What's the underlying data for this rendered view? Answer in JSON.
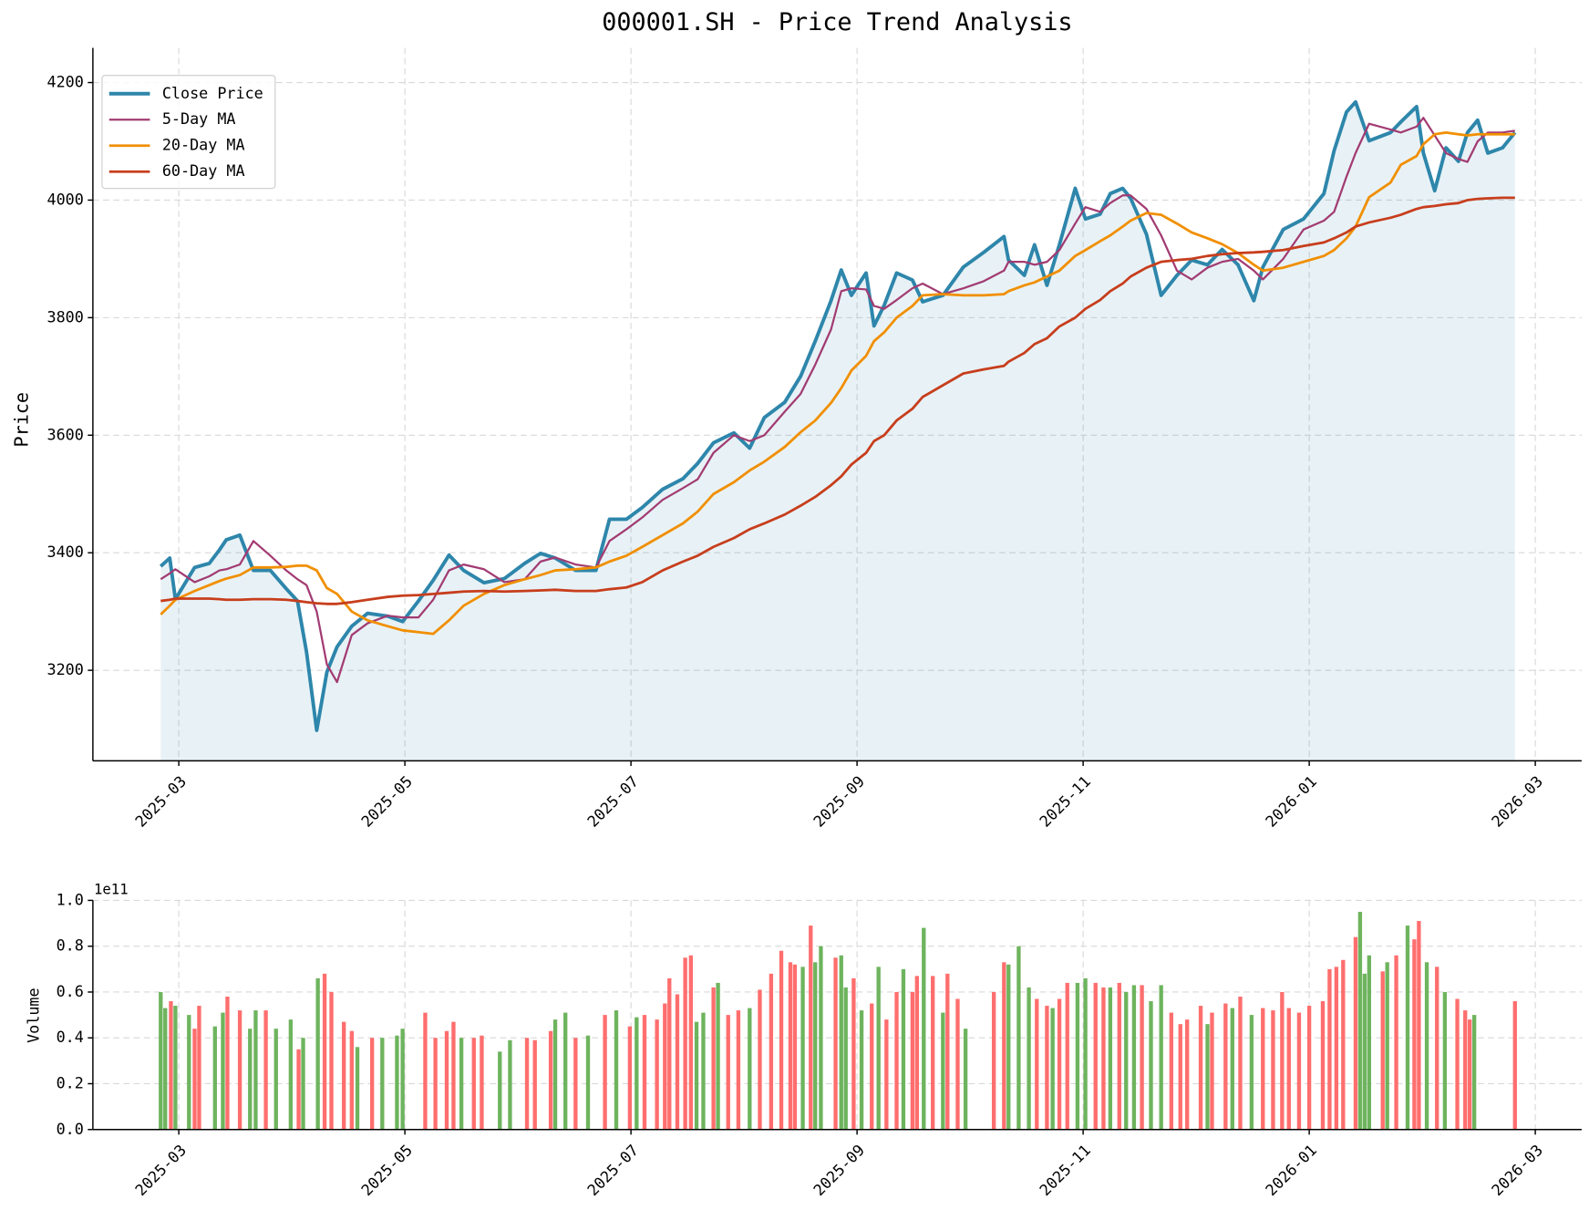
{
  "chart_data": [
    {
      "type": "line",
      "title": "000001.SH - Price Trend Analysis",
      "ylabel": "Price",
      "xlim": [
        2.24,
        15.41
      ],
      "ylim": [
        3046,
        4259
      ],
      "xticks": [
        {
          "value": 3,
          "label": "2025-03"
        },
        {
          "value": 5,
          "label": "2025-05"
        },
        {
          "value": 7,
          "label": "2025-07"
        },
        {
          "value": 9,
          "label": "2025-09"
        },
        {
          "value": 11,
          "label": "2025-11"
        },
        {
          "value": 13,
          "label": "2026-01"
        },
        {
          "value": 15,
          "label": "2026-03"
        }
      ],
      "yticks": [
        3200,
        3400,
        3600,
        3800,
        4000,
        4200
      ],
      "grid": true,
      "legend": "upper left",
      "x": [
        2.84,
        2.92,
        2.97,
        3.14,
        3.27,
        3.36,
        3.42,
        3.54,
        3.66,
        3.81,
        3.95,
        4.05,
        4.13,
        4.22,
        4.31,
        4.4,
        4.53,
        4.67,
        4.85,
        4.98,
        5.12,
        5.25,
        5.39,
        5.52,
        5.7,
        5.88,
        6.06,
        6.2,
        6.33,
        6.51,
        6.69,
        6.81,
        6.96,
        7.1,
        7.28,
        7.46,
        7.59,
        7.73,
        7.91,
        8.05,
        8.18,
        8.36,
        8.5,
        8.63,
        8.77,
        8.86,
        8.95,
        9.08,
        9.15,
        9.24,
        9.35,
        9.49,
        9.58,
        9.76,
        9.94,
        10.12,
        10.3,
        10.34,
        10.48,
        10.57,
        10.68,
        10.79,
        10.93,
        11.02,
        11.15,
        11.24,
        11.35,
        11.42,
        11.56,
        11.69,
        11.83,
        11.96,
        12.1,
        12.23,
        12.37,
        12.51,
        12.59,
        12.77,
        12.95,
        13.13,
        13.22,
        13.33,
        13.41,
        13.53,
        13.72,
        13.81,
        13.95,
        14.01,
        14.11,
        14.21,
        14.32,
        14.4,
        14.49,
        14.58,
        14.71,
        14.82
      ],
      "series": [
        {
          "name": "Close Price",
          "color": "#2e86ab",
          "width": 3.5,
          "fill": true,
          "values": [
            3377,
            3391,
            3321,
            3375,
            3382,
            3405,
            3422,
            3430,
            3370,
            3370,
            3339,
            3318,
            3231,
            3098,
            3197,
            3240,
            3275,
            3297,
            3292,
            3283,
            3318,
            3353,
            3396,
            3370,
            3349,
            3356,
            3382,
            3399,
            3391,
            3370,
            3370,
            3457,
            3457,
            3477,
            3508,
            3526,
            3552,
            3587,
            3604,
            3578,
            3630,
            3656,
            3700,
            3760,
            3829,
            3881,
            3838,
            3876,
            3786,
            3821,
            3876,
            3864,
            3827,
            3838,
            3886,
            3911,
            3938,
            3898,
            3872,
            3924,
            3855,
            3924,
            4020,
            3968,
            3976,
            4011,
            4020,
            4003,
            3942,
            3838,
            3872,
            3898,
            3890,
            3916,
            3890,
            3829,
            3886,
            3950,
            3968,
            4011,
            4084,
            4150,
            4167,
            4101,
            4115,
            4133,
            4159,
            4080,
            4016,
            4089,
            4066,
            4115,
            4136,
            4080,
            4089,
            4115
          ]
        },
        {
          "name": "5-Day MA",
          "color": "#a23b72",
          "width": 2,
          "values": [
            3355,
            3365,
            3372,
            3350,
            3360,
            3370,
            3372,
            3380,
            3420,
            3395,
            3370,
            3355,
            3345,
            3300,
            3210,
            3180,
            3260,
            3280,
            3293,
            3290,
            3290,
            3320,
            3370,
            3380,
            3372,
            3350,
            3355,
            3385,
            3392,
            3380,
            3375,
            3420,
            3440,
            3460,
            3490,
            3510,
            3525,
            3570,
            3600,
            3590,
            3600,
            3640,
            3670,
            3720,
            3780,
            3845,
            3850,
            3848,
            3820,
            3815,
            3830,
            3850,
            3858,
            3840,
            3850,
            3862,
            3880,
            3895,
            3895,
            3890,
            3895,
            3915,
            3960,
            3988,
            3980,
            3995,
            4008,
            4008,
            3985,
            3940,
            3880,
            3865,
            3885,
            3895,
            3900,
            3880,
            3865,
            3900,
            3950,
            3965,
            3980,
            4040,
            4080,
            4130,
            4120,
            4115,
            4125,
            4140,
            4110,
            4080,
            4070,
            4065,
            4100,
            4115,
            4115,
            4118
          ]
        },
        {
          "name": "20-Day MA",
          "color": "#f18f01",
          "width": 2.5,
          "values": [
            3295,
            3310,
            3320,
            3335,
            3345,
            3352,
            3356,
            3362,
            3375,
            3375,
            3376,
            3378,
            3378,
            3370,
            3340,
            3330,
            3300,
            3285,
            3275,
            3268,
            3265,
            3262,
            3285,
            3310,
            3330,
            3345,
            3355,
            3362,
            3370,
            3372,
            3375,
            3385,
            3395,
            3410,
            3430,
            3450,
            3470,
            3500,
            3520,
            3540,
            3555,
            3580,
            3605,
            3625,
            3655,
            3680,
            3710,
            3735,
            3760,
            3775,
            3800,
            3820,
            3838,
            3840,
            3838,
            3838,
            3840,
            3845,
            3855,
            3860,
            3870,
            3880,
            3905,
            3915,
            3930,
            3940,
            3955,
            3965,
            3978,
            3975,
            3960,
            3945,
            3935,
            3925,
            3910,
            3890,
            3880,
            3885,
            3895,
            3905,
            3915,
            3935,
            3955,
            4005,
            4030,
            4060,
            4075,
            4095,
            4112,
            4115,
            4112,
            4110,
            4112,
            4112,
            4112,
            4112
          ]
        },
        {
          "name": "60-Day MA",
          "color": "#c73e1d",
          "width": 2.5,
          "values": [
            3318,
            3320,
            3322,
            3322,
            3322,
            3321,
            3320,
            3320,
            3321,
            3321,
            3320,
            3318,
            3316,
            3314,
            3313,
            3313,
            3316,
            3320,
            3325,
            3327,
            3328,
            3330,
            3332,
            3334,
            3335,
            3334,
            3335,
            3336,
            3337,
            3335,
            3335,
            3338,
            3341,
            3350,
            3370,
            3385,
            3395,
            3410,
            3425,
            3440,
            3450,
            3465,
            3480,
            3495,
            3515,
            3530,
            3550,
            3570,
            3590,
            3600,
            3625,
            3645,
            3665,
            3685,
            3705,
            3712,
            3718,
            3725,
            3740,
            3755,
            3765,
            3785,
            3800,
            3815,
            3830,
            3845,
            3858,
            3870,
            3885,
            3895,
            3898,
            3900,
            3905,
            3908,
            3910,
            3911,
            3912,
            3915,
            3922,
            3928,
            3935,
            3945,
            3955,
            3962,
            3970,
            3975,
            3985,
            3988,
            3990,
            3993,
            3995,
            4000,
            4002,
            4003,
            4004,
            4004
          ]
        }
      ]
    },
    {
      "type": "bar",
      "ylabel": "Volume",
      "offset_label": "1e11",
      "xlim": [
        2.24,
        15.41
      ],
      "ylim": [
        0,
        1.0
      ],
      "xticks": [
        {
          "value": 3,
          "label": "2025-03"
        },
        {
          "value": 5,
          "label": "2025-05"
        },
        {
          "value": 7,
          "label": "2025-07"
        },
        {
          "value": 9,
          "label": "2025-09"
        },
        {
          "value": 11,
          "label": "2025-11"
        },
        {
          "value": 13,
          "label": "2026-01"
        },
        {
          "value": 15,
          "label": "2026-03"
        }
      ],
      "yticks": [
        {
          "value": 0,
          "label": "0.0"
        },
        0.2,
        0.4,
        0.6,
        0.8,
        {
          "value": 1,
          "label": "1.0"
        }
      ],
      "grid": true,
      "x": [
        2.84,
        2.88,
        2.93,
        2.97,
        3.09,
        3.14,
        3.18,
        3.32,
        3.39,
        3.43,
        3.54,
        3.63,
        3.68,
        3.77,
        3.86,
        3.99,
        4.06,
        4.1,
        4.23,
        4.29,
        4.35,
        4.46,
        4.53,
        4.58,
        4.71,
        4.8,
        4.93,
        4.98,
        5.18,
        5.27,
        5.37,
        5.43,
        5.5,
        5.61,
        5.68,
        5.84,
        5.93,
        6.08,
        6.15,
        6.29,
        6.33,
        6.42,
        6.51,
        6.62,
        6.77,
        6.87,
        6.99,
        7.05,
        7.12,
        7.23,
        7.3,
        7.34,
        7.41,
        7.48,
        7.53,
        7.58,
        7.64,
        7.73,
        7.77,
        7.86,
        7.95,
        8.05,
        8.14,
        8.24,
        8.33,
        8.41,
        8.45,
        8.52,
        8.59,
        8.63,
        8.68,
        8.81,
        8.86,
        8.9,
        8.97,
        9.04,
        9.13,
        9.19,
        9.26,
        9.35,
        9.41,
        9.49,
        9.53,
        9.59,
        9.67,
        9.76,
        9.8,
        9.89,
        9.96,
        10.21,
        10.3,
        10.34,
        10.43,
        10.52,
        10.59,
        10.68,
        10.73,
        10.79,
        10.86,
        10.95,
        11.02,
        11.11,
        11.18,
        11.24,
        11.32,
        11.38,
        11.45,
        11.52,
        11.6,
        11.69,
        11.78,
        11.86,
        11.92,
        12.04,
        12.1,
        12.14,
        12.26,
        12.32,
        12.39,
        12.49,
        12.59,
        12.68,
        12.76,
        12.82,
        12.91,
        13.0,
        13.12,
        13.18,
        13.24,
        13.3,
        13.41,
        13.45,
        13.49,
        13.53,
        13.65,
        13.69,
        13.77,
        13.87,
        13.93,
        13.97,
        14.04,
        14.13,
        14.2,
        14.31,
        14.38,
        14.42,
        14.46,
        14.82
      ],
      "values": [
        0.6,
        0.53,
        0.56,
        0.54,
        0.5,
        0.44,
        0.54,
        0.45,
        0.51,
        0.58,
        0.52,
        0.44,
        0.52,
        0.52,
        0.44,
        0.48,
        0.35,
        0.4,
        0.66,
        0.68,
        0.6,
        0.47,
        0.43,
        0.36,
        0.4,
        0.4,
        0.41,
        0.44,
        0.51,
        0.4,
        0.43,
        0.47,
        0.4,
        0.4,
        0.41,
        0.34,
        0.39,
        0.4,
        0.39,
        0.43,
        0.48,
        0.51,
        0.4,
        0.41,
        0.5,
        0.52,
        0.45,
        0.49,
        0.5,
        0.48,
        0.55,
        0.66,
        0.59,
        0.75,
        0.76,
        0.47,
        0.51,
        0.62,
        0.64,
        0.5,
        0.52,
        0.53,
        0.61,
        0.68,
        0.78,
        0.73,
        0.72,
        0.71,
        0.89,
        0.73,
        0.8,
        0.75,
        0.76,
        0.62,
        0.66,
        0.52,
        0.55,
        0.71,
        0.48,
        0.6,
        0.7,
        0.6,
        0.67,
        0.88,
        0.67,
        0.51,
        0.68,
        0.57,
        0.44,
        0.6,
        0.73,
        0.72,
        0.8,
        0.62,
        0.57,
        0.54,
        0.53,
        0.57,
        0.64,
        0.64,
        0.66,
        0.64,
        0.62,
        0.62,
        0.64,
        0.6,
        0.63,
        0.63,
        0.56,
        0.63,
        0.51,
        0.46,
        0.48,
        0.54,
        0.46,
        0.51,
        0.55,
        0.53,
        0.58,
        0.5,
        0.53,
        0.52,
        0.6,
        0.53,
        0.51,
        0.54,
        0.56,
        0.7,
        0.71,
        0.74,
        0.84,
        0.95,
        0.68,
        0.76,
        0.69,
        0.73,
        0.76,
        0.89,
        0.83,
        0.91,
        0.73,
        0.71,
        0.6,
        0.57,
        0.52,
        0.48,
        0.5,
        0.56
      ],
      "colors": [
        "#66b055",
        "#66b055",
        "#ff6666",
        "#66b055",
        "#66b055",
        "#ff6666",
        "#ff6666",
        "#66b055",
        "#66b055",
        "#ff6666",
        "#ff6666",
        "#66b055",
        "#66b055",
        "#ff6666",
        "#66b055",
        "#66b055",
        "#ff6666",
        "#66b055",
        "#66b055",
        "#ff6666",
        "#ff6666",
        "#ff6666",
        "#ff6666",
        "#66b055",
        "#ff6666",
        "#66b055",
        "#66b055",
        "#66b055",
        "#ff6666",
        "#ff6666",
        "#ff6666",
        "#ff6666",
        "#66b055",
        "#ff6666",
        "#ff6666",
        "#66b055",
        "#66b055",
        "#ff6666",
        "#ff6666",
        "#ff6666",
        "#66b055",
        "#66b055",
        "#ff6666",
        "#66b055",
        "#ff6666",
        "#66b055",
        "#ff6666",
        "#66b055",
        "#ff6666",
        "#ff6666",
        "#ff6666",
        "#ff6666",
        "#ff6666",
        "#ff6666",
        "#ff6666",
        "#66b055",
        "#66b055",
        "#ff6666",
        "#66b055",
        "#ff6666",
        "#ff6666",
        "#66b055",
        "#ff6666",
        "#ff6666",
        "#ff6666",
        "#ff6666",
        "#ff6666",
        "#66b055",
        "#ff6666",
        "#66b055",
        "#66b055",
        "#ff6666",
        "#66b055",
        "#66b055",
        "#ff6666",
        "#66b055",
        "#ff6666",
        "#66b055",
        "#ff6666",
        "#ff6666",
        "#66b055",
        "#ff6666",
        "#ff6666",
        "#66b055",
        "#ff6666",
        "#66b055",
        "#ff6666",
        "#ff6666",
        "#66b055",
        "#ff6666",
        "#ff6666",
        "#66b055",
        "#66b055",
        "#66b055",
        "#ff6666",
        "#ff6666",
        "#66b055",
        "#ff6666",
        "#ff6666",
        "#66b055",
        "#66b055",
        "#ff6666",
        "#ff6666",
        "#66b055",
        "#ff6666",
        "#66b055",
        "#66b055",
        "#ff6666",
        "#66b055",
        "#66b055",
        "#ff6666",
        "#ff6666",
        "#ff6666",
        "#ff6666",
        "#66b055",
        "#ff6666",
        "#ff6666",
        "#66b055",
        "#ff6666",
        "#66b055",
        "#ff6666",
        "#ff6666",
        "#ff6666",
        "#ff6666",
        "#ff6666",
        "#ff6666",
        "#ff6666",
        "#ff6666",
        "#ff6666",
        "#ff6666",
        "#ff6666",
        "#66b055",
        "#66b055",
        "#66b055",
        "#ff6666",
        "#66b055",
        "#ff6666",
        "#66b055",
        "#ff6666",
        "#ff6666",
        "#66b055",
        "#ff6666",
        "#66b055",
        "#ff6666",
        "#ff6666",
        "#ff6666",
        "#66b055",
        "#ff6666"
      ]
    }
  ]
}
